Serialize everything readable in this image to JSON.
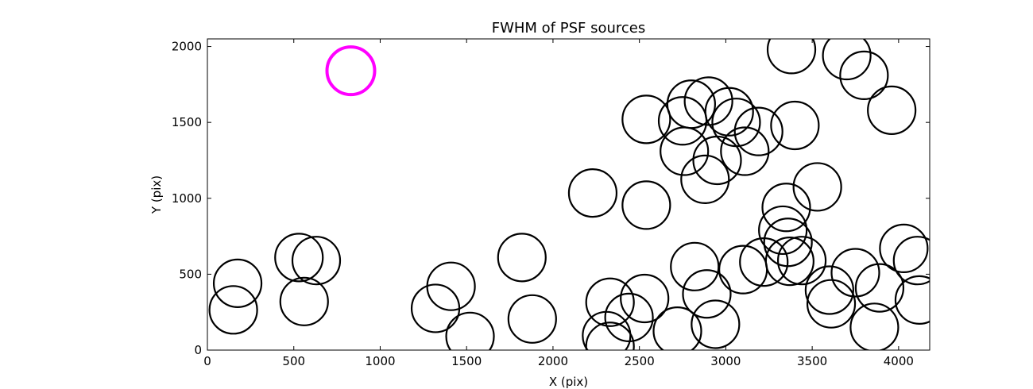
{
  "chart_data": {
    "type": "scatter",
    "title": "FWHM of PSF sources",
    "xlabel": "X (pix)",
    "ylabel": "Y (pix)",
    "xlim": [
      0,
      4180
    ],
    "ylim": [
      0,
      2050
    ],
    "x_ticks": [
      0,
      500,
      1000,
      1500,
      2000,
      2500,
      3000,
      3500,
      4000
    ],
    "y_ticks": [
      0,
      500,
      1000,
      1500,
      2000
    ],
    "grid": false,
    "marker": "open-circle",
    "series": [
      {
        "color": "#000000",
        "points": [
          {
            "x": 150,
            "y": 265
          },
          {
            "x": 175,
            "y": 440
          },
          {
            "x": 530,
            "y": 610
          },
          {
            "x": 560,
            "y": 320
          },
          {
            "x": 630,
            "y": 590
          },
          {
            "x": 1320,
            "y": 275
          },
          {
            "x": 1410,
            "y": 420
          },
          {
            "x": 1520,
            "y": 90
          },
          {
            "x": 1820,
            "y": 610
          },
          {
            "x": 1880,
            "y": 205
          },
          {
            "x": 2230,
            "y": 1035
          },
          {
            "x": 2310,
            "y": 95
          },
          {
            "x": 2330,
            "y": 315
          },
          {
            "x": 2330,
            "y": 25
          },
          {
            "x": 2440,
            "y": 215
          },
          {
            "x": 2530,
            "y": 340
          },
          {
            "x": 2540,
            "y": 1520
          },
          {
            "x": 2540,
            "y": 955
          },
          {
            "x": 2720,
            "y": 125
          },
          {
            "x": 2750,
            "y": 1510
          },
          {
            "x": 2760,
            "y": 1310
          },
          {
            "x": 2800,
            "y": 1620
          },
          {
            "x": 2820,
            "y": 550
          },
          {
            "x": 2880,
            "y": 1125
          },
          {
            "x": 2890,
            "y": 370
          },
          {
            "x": 2900,
            "y": 1640
          },
          {
            "x": 2940,
            "y": 170
          },
          {
            "x": 2950,
            "y": 1250
          },
          {
            "x": 3020,
            "y": 1570
          },
          {
            "x": 3060,
            "y": 1500
          },
          {
            "x": 3100,
            "y": 530
          },
          {
            "x": 3110,
            "y": 1310
          },
          {
            "x": 3190,
            "y": 1440
          },
          {
            "x": 3220,
            "y": 580
          },
          {
            "x": 3330,
            "y": 790
          },
          {
            "x": 3350,
            "y": 940
          },
          {
            "x": 3360,
            "y": 710
          },
          {
            "x": 3370,
            "y": 585
          },
          {
            "x": 3380,
            "y": 1980
          },
          {
            "x": 3400,
            "y": 1480
          },
          {
            "x": 3440,
            "y": 590
          },
          {
            "x": 3530,
            "y": 1075
          },
          {
            "x": 3600,
            "y": 395
          },
          {
            "x": 3610,
            "y": 305
          },
          {
            "x": 3700,
            "y": 1940
          },
          {
            "x": 3750,
            "y": 510
          },
          {
            "x": 3800,
            "y": 1810
          },
          {
            "x": 3860,
            "y": 150
          },
          {
            "x": 3890,
            "y": 410
          },
          {
            "x": 3960,
            "y": 1580
          },
          {
            "x": 4030,
            "y": 670
          },
          {
            "x": 4110,
            "y": 590
          },
          {
            "x": 4120,
            "y": 330
          }
        ]
      },
      {
        "color": "#ff00ff",
        "points": [
          {
            "x": 830,
            "y": 1840
          }
        ]
      }
    ]
  }
}
